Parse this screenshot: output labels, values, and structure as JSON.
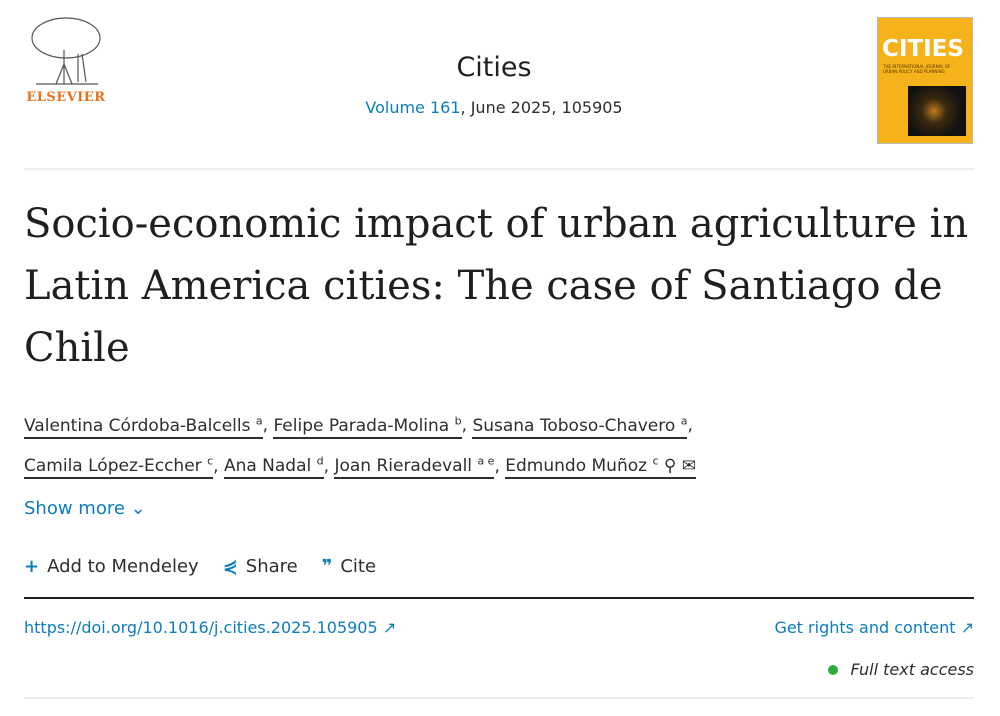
{
  "publisher": {
    "name": "ELSEVIER"
  },
  "journal": {
    "title": "Cities",
    "volume_link": "Volume 161",
    "issue_rest": ", June 2025, 105905",
    "cover_title": "CITIES",
    "cover_subtitle": "THE INTERNATIONAL JOURNAL OF URBAN POLICY AND PLANNING"
  },
  "article": {
    "title": "Socio-economic impact of urban agriculture in Latin America cities: The case of Santiago de Chile"
  },
  "authors": [
    {
      "name": "Valentina Córdoba-Balcells",
      "aff": "a"
    },
    {
      "name": "Felipe Parada-Molina",
      "aff": "b"
    },
    {
      "name": "Susana Toboso-Chavero",
      "aff": "a"
    },
    {
      "name": "Camila López-Eccher",
      "aff": "c"
    },
    {
      "name": "Ana Nadal",
      "aff": "d"
    },
    {
      "name": "Joan Rieradevall",
      "aff": "a e"
    },
    {
      "name": "Edmundo Muñoz",
      "aff": "c"
    }
  ],
  "show_more": "Show more",
  "actions": {
    "mendeley": "Add to Mendeley",
    "share": "Share",
    "cite": "Cite"
  },
  "doi": "https://doi.org/10.1016/j.cities.2025.105905",
  "rights": "Get rights and content",
  "access": "Full text access",
  "colors": {
    "link": "#0c7dbb",
    "elsevier": "#e9711c",
    "access": "#2eab3c"
  }
}
